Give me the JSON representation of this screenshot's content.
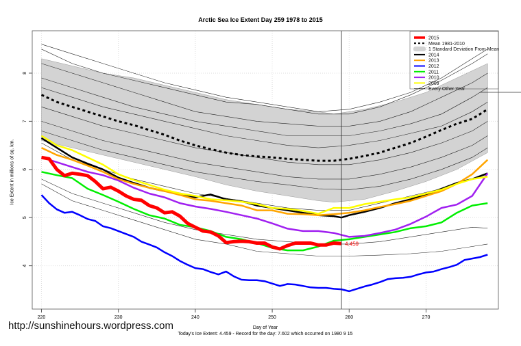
{
  "chart_data": {
    "type": "line",
    "title": "Arctic Sea Ice Extent Day 259 1978 to 2015",
    "xlabel": "Day of Year",
    "ylabel": "Ice Extent in millions of sq. km.",
    "footer": "Today's Ice Extent: 4.459  - Record for the day: 7.602 which occurred on 1980 9 15",
    "xlim": [
      218.8,
      279.4
    ],
    "ylim": [
      3.1,
      8.88
    ],
    "xticks": [
      220,
      230,
      240,
      250,
      260,
      270
    ],
    "yticks": [
      4,
      5,
      6,
      7,
      8
    ],
    "grid": true,
    "legend_position": "top-right",
    "current_day": 259,
    "end_label": "4.459",
    "record_value": 7.602,
    "std_band": {
      "name": "1 Standard Deviation From Mean",
      "color": "#d3d3d3",
      "days": [
        220,
        224,
        228,
        232,
        236,
        240,
        244,
        248,
        252,
        256,
        258,
        262,
        266,
        270,
        274,
        278
      ],
      "upper": [
        8.3,
        8.15,
        8.0,
        7.9,
        7.75,
        7.6,
        7.45,
        7.35,
        7.25,
        7.2,
        7.15,
        7.25,
        7.4,
        7.6,
        7.9,
        8.2
      ],
      "lower": [
        6.6,
        6.45,
        6.3,
        6.15,
        6.0,
        5.85,
        5.68,
        5.55,
        5.45,
        5.35,
        5.32,
        5.38,
        5.55,
        5.75,
        6.0,
        6.35
      ]
    },
    "series": [
      {
        "name": "Mean 1981-2010",
        "color": "#000000",
        "style": "dashed",
        "width": 3,
        "days": [
          220,
          222,
          224,
          226,
          228,
          230,
          232,
          234,
          236,
          238,
          240,
          242,
          244,
          246,
          248,
          250,
          252,
          254,
          256,
          258,
          260,
          262,
          264,
          266,
          268,
          270,
          272,
          274,
          276,
          278
        ],
        "values": [
          7.55,
          7.4,
          7.3,
          7.2,
          7.1,
          7.0,
          6.92,
          6.82,
          6.72,
          6.6,
          6.5,
          6.42,
          6.35,
          6.3,
          6.27,
          6.25,
          6.22,
          6.2,
          6.18,
          6.18,
          6.22,
          6.28,
          6.35,
          6.45,
          6.55,
          6.68,
          6.82,
          6.95,
          7.05,
          7.25
        ]
      },
      {
        "name": "2014",
        "color": "#000000",
        "width": 2.5,
        "days": [
          220,
          222,
          224,
          226,
          228,
          230,
          232,
          234,
          236,
          238,
          240,
          242,
          244,
          246,
          248,
          250,
          252,
          254,
          256,
          258,
          259,
          260,
          262,
          264,
          266,
          268,
          270,
          272,
          274,
          276,
          278
        ],
        "values": [
          6.65,
          6.45,
          6.25,
          6.12,
          6.0,
          5.83,
          5.72,
          5.62,
          5.55,
          5.5,
          5.42,
          5.48,
          5.38,
          5.34,
          5.25,
          5.2,
          5.15,
          5.1,
          5.05,
          5.03,
          5.0,
          5.05,
          5.12,
          5.2,
          5.3,
          5.38,
          5.48,
          5.6,
          5.72,
          5.8,
          5.92
        ]
      },
      {
        "name": "2013",
        "color": "#ffa500",
        "width": 2.5,
        "days": [
          220,
          222,
          224,
          226,
          228,
          230,
          232,
          234,
          236,
          238,
          240,
          242,
          244,
          246,
          248,
          250,
          252,
          254,
          256,
          258,
          260,
          262,
          264,
          266,
          268,
          270,
          272,
          274,
          276,
          278
        ],
        "values": [
          6.45,
          6.3,
          6.2,
          6.08,
          5.95,
          5.8,
          5.7,
          5.62,
          5.55,
          5.47,
          5.38,
          5.35,
          5.3,
          5.25,
          5.15,
          5.15,
          5.08,
          5.07,
          5.05,
          5.07,
          5.1,
          5.15,
          5.22,
          5.28,
          5.35,
          5.45,
          5.55,
          5.7,
          5.9,
          6.2
        ]
      },
      {
        "name": "2012",
        "color": "#0000ff",
        "width": 2.5,
        "days": [
          220,
          221,
          222,
          223,
          224,
          225,
          226,
          227,
          228,
          229,
          230,
          231,
          232,
          233,
          234,
          235,
          236,
          237,
          238,
          239,
          240,
          241,
          242,
          243,
          244,
          245,
          246,
          247,
          248,
          249,
          250,
          251,
          252,
          253,
          254,
          255,
          256,
          257,
          258,
          259,
          260,
          261,
          262,
          263,
          264,
          265,
          266,
          267,
          268,
          269,
          270,
          271,
          272,
          273,
          274,
          275,
          276,
          277,
          278
        ],
        "values": [
          5.47,
          5.3,
          5.17,
          5.1,
          5.12,
          5.05,
          4.97,
          4.93,
          4.82,
          4.78,
          4.72,
          4.66,
          4.6,
          4.5,
          4.44,
          4.38,
          4.28,
          4.2,
          4.1,
          4.02,
          3.95,
          3.93,
          3.87,
          3.82,
          3.88,
          3.78,
          3.71,
          3.7,
          3.7,
          3.68,
          3.63,
          3.58,
          3.62,
          3.61,
          3.58,
          3.55,
          3.54,
          3.54,
          3.52,
          3.51,
          3.47,
          3.52,
          3.57,
          3.61,
          3.66,
          3.72,
          3.74,
          3.75,
          3.77,
          3.82,
          3.86,
          3.88,
          3.93,
          3.97,
          4.02,
          4.12,
          4.15,
          4.18,
          4.23
        ]
      },
      {
        "name": "2011",
        "color": "#00ee00",
        "width": 2.5,
        "days": [
          220,
          222,
          224,
          226,
          228,
          230,
          232,
          234,
          236,
          238,
          240,
          242,
          244,
          246,
          248,
          250,
          252,
          254,
          256,
          258,
          260,
          262,
          264,
          266,
          268,
          270,
          272,
          274,
          276,
          278
        ],
        "values": [
          5.95,
          5.88,
          5.82,
          5.6,
          5.47,
          5.33,
          5.18,
          5.05,
          4.98,
          4.85,
          4.8,
          4.72,
          4.6,
          4.55,
          4.47,
          4.37,
          4.32,
          4.32,
          4.4,
          4.52,
          4.55,
          4.6,
          4.65,
          4.7,
          4.78,
          4.82,
          4.9,
          5.1,
          5.25,
          5.3
        ]
      },
      {
        "name": "2010",
        "color": "#a020f0",
        "width": 2.5,
        "days": [
          220,
          222,
          224,
          226,
          228,
          230,
          232,
          234,
          236,
          238,
          240,
          242,
          244,
          246,
          248,
          250,
          252,
          254,
          256,
          258,
          260,
          262,
          264,
          266,
          268,
          270,
          272,
          274,
          276,
          278
        ],
        "values": [
          6.25,
          6.15,
          6.05,
          5.95,
          5.88,
          5.77,
          5.62,
          5.5,
          5.42,
          5.3,
          5.23,
          5.18,
          5.12,
          5.05,
          4.98,
          4.88,
          4.77,
          4.72,
          4.72,
          4.68,
          4.6,
          4.62,
          4.68,
          4.75,
          4.87,
          5.02,
          5.2,
          5.27,
          5.45,
          5.92
        ]
      },
      {
        "name": "2009",
        "color": "#ffff00",
        "width": 2.5,
        "days": [
          220,
          222,
          224,
          226,
          228,
          230,
          232,
          234,
          236,
          238,
          240,
          242,
          244,
          246,
          248,
          250,
          252,
          254,
          256,
          258,
          260,
          262,
          264,
          266,
          268,
          270,
          272,
          274,
          276,
          278
        ],
        "values": [
          6.7,
          6.5,
          6.4,
          6.25,
          6.1,
          5.9,
          5.78,
          5.68,
          5.58,
          5.5,
          5.45,
          5.38,
          5.36,
          5.33,
          5.28,
          5.2,
          5.18,
          5.14,
          5.08,
          5.2,
          5.2,
          5.28,
          5.33,
          5.38,
          5.42,
          5.5,
          5.58,
          5.7,
          5.8,
          5.85
        ]
      },
      {
        "name": "2015",
        "color": "#ff0000",
        "width": 5,
        "days": [
          220,
          221,
          222,
          223,
          224,
          225,
          226,
          227,
          228,
          229,
          230,
          231,
          232,
          233,
          234,
          235,
          236,
          237,
          238,
          239,
          240,
          241,
          242,
          243,
          244,
          245,
          246,
          247,
          248,
          249,
          250,
          251,
          252,
          253,
          254,
          255,
          256,
          257,
          258,
          259
        ],
        "values": [
          6.25,
          6.22,
          6.0,
          5.87,
          5.92,
          5.9,
          5.87,
          5.75,
          5.6,
          5.63,
          5.55,
          5.45,
          5.38,
          5.36,
          5.25,
          5.2,
          5.1,
          5.12,
          5.03,
          4.88,
          4.8,
          4.72,
          4.7,
          4.62,
          4.48,
          4.5,
          4.51,
          4.5,
          4.47,
          4.47,
          4.39,
          4.35,
          4.42,
          4.47,
          4.47,
          4.47,
          4.43,
          4.43,
          4.47,
          4.459
        ]
      }
    ],
    "other_years": {
      "name": "Every Other Year",
      "color": "#000000",
      "days": [
        220,
        224,
        228,
        232,
        236,
        240,
        244,
        248,
        252,
        256,
        260,
        264,
        268,
        272,
        276,
        278
      ],
      "lines": [
        [
          8.6,
          8.4,
          8.2,
          8.0,
          7.8,
          7.65,
          7.5,
          7.4,
          7.3,
          7.2,
          7.25,
          7.4,
          7.6,
          7.9,
          8.3,
          8.5
        ],
        [
          8.5,
          8.2,
          8.0,
          7.85,
          7.7,
          7.55,
          7.4,
          7.35,
          7.25,
          7.15,
          7.15,
          7.3,
          7.55,
          7.85,
          8.2,
          8.4
        ],
        [
          8.2,
          8.0,
          7.8,
          7.6,
          7.4,
          7.2,
          7.1,
          7.0,
          6.95,
          6.9,
          6.9,
          7.0,
          7.2,
          7.5,
          7.8,
          8.0
        ],
        [
          7.9,
          7.7,
          7.5,
          7.3,
          7.15,
          7.0,
          6.9,
          6.8,
          6.7,
          6.7,
          6.7,
          6.8,
          6.95,
          7.15,
          7.5,
          7.7
        ],
        [
          7.7,
          7.5,
          7.3,
          7.15,
          7.0,
          6.85,
          6.7,
          6.6,
          6.5,
          6.45,
          6.5,
          6.6,
          6.75,
          6.9,
          7.2,
          7.4
        ],
        [
          7.3,
          7.1,
          6.9,
          6.75,
          6.6,
          6.45,
          6.35,
          6.25,
          6.15,
          6.1,
          6.1,
          6.2,
          6.35,
          6.55,
          6.8,
          7.0
        ],
        [
          7.0,
          6.8,
          6.6,
          6.45,
          6.3,
          6.15,
          6.05,
          5.95,
          5.85,
          5.8,
          5.8,
          5.9,
          6.05,
          6.25,
          6.5,
          6.7
        ],
        [
          6.8,
          6.6,
          6.4,
          6.25,
          6.1,
          5.95,
          5.85,
          5.75,
          5.68,
          5.6,
          5.58,
          5.65,
          5.8,
          6.0,
          6.25,
          6.45
        ],
        [
          6.55,
          6.2,
          6.0,
          5.8,
          5.65,
          5.5,
          5.4,
          5.3,
          5.2,
          5.15,
          5.15,
          5.3,
          5.45,
          5.6,
          5.8,
          5.9
        ],
        [
          5.8,
          5.5,
          5.3,
          5.1,
          4.9,
          4.75,
          4.65,
          4.55,
          4.5,
          4.45,
          4.45,
          4.5,
          4.6,
          4.7,
          4.8,
          4.78
        ],
        [
          5.7,
          5.35,
          5.15,
          4.95,
          4.75,
          4.55,
          4.45,
          4.3,
          4.25,
          4.2,
          4.2,
          4.22,
          4.25,
          4.3,
          4.4,
          4.45
        ]
      ]
    }
  },
  "watermark": "http://sunshinehours.wordpress.com"
}
